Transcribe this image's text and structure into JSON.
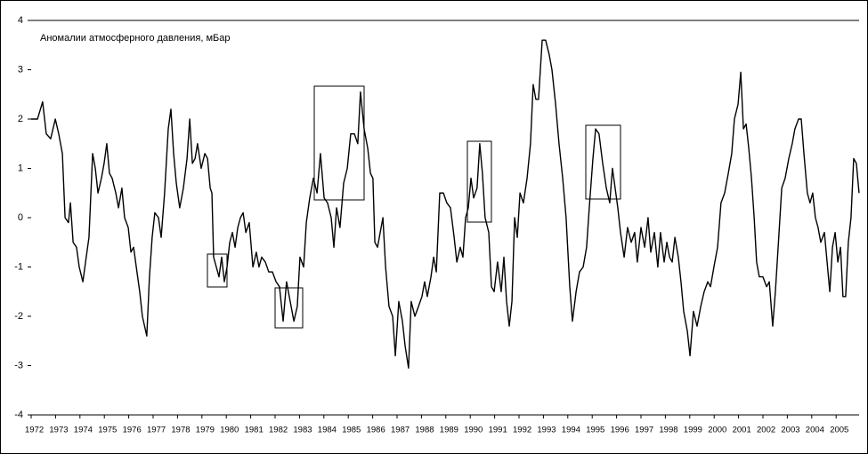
{
  "chart_data": {
    "type": "line",
    "title": "Аномалии атмосферного давления, мБар",
    "color": "#000000",
    "xlim": [
      1972,
      2006
    ],
    "xticks": [
      1972,
      1973,
      1974,
      1975,
      1976,
      1977,
      1978,
      1979,
      1980,
      1981,
      1982,
      1983,
      1984,
      1985,
      1986,
      1987,
      1988,
      1989,
      1990,
      1991,
      1992,
      1993,
      1994,
      1995,
      1996,
      1997,
      1998,
      1999,
      2000,
      2001,
      2002,
      2003,
      2004,
      2005
    ],
    "ylim": [
      -4,
      4
    ],
    "yticks": [
      -4,
      -3,
      -2,
      -1,
      0,
      1,
      2,
      3,
      4
    ],
    "x": [
      1972.0,
      1972.26,
      1972.47,
      1972.62,
      1972.8,
      1972.99,
      1973.13,
      1973.28,
      1973.39,
      1973.53,
      1973.61,
      1973.72,
      1973.86,
      1973.97,
      1974.12,
      1974.23,
      1974.37,
      1974.52,
      1974.63,
      1974.74,
      1974.88,
      1974.99,
      1975.1,
      1975.21,
      1975.32,
      1975.47,
      1975.58,
      1975.72,
      1975.83,
      1975.98,
      1976.09,
      1976.2,
      1976.31,
      1976.45,
      1976.56,
      1976.74,
      1976.85,
      1976.96,
      1977.07,
      1977.22,
      1977.33,
      1977.47,
      1977.62,
      1977.73,
      1977.84,
      1977.95,
      1978.09,
      1978.24,
      1978.39,
      1978.5,
      1978.61,
      1978.72,
      1978.82,
      1978.97,
      1979.12,
      1979.23,
      1979.34,
      1979.41,
      1979.48,
      1979.59,
      1979.7,
      1979.81,
      1979.92,
      1980.03,
      1980.14,
      1980.25,
      1980.36,
      1980.47,
      1980.58,
      1980.69,
      1980.8,
      1980.94,
      1981.09,
      1981.23,
      1981.34,
      1981.45,
      1981.6,
      1981.74,
      1981.89,
      1982.04,
      1982.18,
      1982.33,
      1982.47,
      1982.62,
      1982.77,
      1982.91,
      1983.02,
      1983.17,
      1983.28,
      1983.42,
      1983.57,
      1983.72,
      1983.86,
      1984.01,
      1984.15,
      1984.3,
      1984.41,
      1984.52,
      1984.66,
      1984.81,
      1984.96,
      1985.1,
      1985.25,
      1985.39,
      1985.5,
      1985.65,
      1985.8,
      1985.91,
      1986.01,
      1986.09,
      1986.2,
      1986.31,
      1986.42,
      1986.53,
      1986.67,
      1986.82,
      1986.93,
      1987.07,
      1987.22,
      1987.33,
      1987.47,
      1987.58,
      1987.73,
      1987.88,
      1988.02,
      1988.13,
      1988.24,
      1988.39,
      1988.5,
      1988.61,
      1988.75,
      1988.9,
      1989.04,
      1989.19,
      1989.34,
      1989.45,
      1989.59,
      1989.7,
      1989.81,
      1989.92,
      1990.03,
      1990.14,
      1990.28,
      1990.39,
      1990.5,
      1990.61,
      1990.76,
      1990.87,
      1990.98,
      1991.12,
      1991.27,
      1991.38,
      1991.49,
      1991.6,
      1991.71,
      1991.82,
      1991.93,
      1992.04,
      1992.18,
      1992.33,
      1992.47,
      1992.58,
      1992.69,
      1992.8,
      1992.95,
      1993.09,
      1993.24,
      1993.35,
      1993.5,
      1993.64,
      1993.79,
      1993.93,
      1994.08,
      1994.19,
      1994.34,
      1994.48,
      1994.63,
      1994.77,
      1994.88,
      1995.03,
      1995.14,
      1995.28,
      1995.43,
      1995.58,
      1995.72,
      1995.83,
      1995.94,
      1996.05,
      1996.16,
      1996.31,
      1996.45,
      1996.6,
      1996.74,
      1996.85,
      1997.0,
      1997.15,
      1997.29,
      1997.4,
      1997.55,
      1997.69,
      1997.8,
      1997.95,
      1998.06,
      1998.17,
      1998.28,
      1998.39,
      1998.53,
      1998.64,
      1998.75,
      1998.9,
      1999.01,
      1999.15,
      1999.3,
      1999.45,
      1999.59,
      1999.74,
      1999.85,
      1999.99,
      2000.14,
      2000.28,
      2000.43,
      2000.58,
      2000.72,
      2000.83,
      2000.98,
      2001.09,
      2001.2,
      2001.31,
      2001.42,
      2001.53,
      2001.64,
      2001.74,
      2001.85,
      2002.0,
      2002.15,
      2002.26,
      2002.4,
      2002.51,
      2002.66,
      2002.77,
      2002.91,
      2003.06,
      2003.2,
      2003.31,
      2003.46,
      2003.57,
      2003.68,
      2003.82,
      2003.93,
      2004.04,
      2004.15,
      2004.26,
      2004.37,
      2004.52,
      2004.63,
      2004.74,
      2004.85,
      2004.96,
      2005.07,
      2005.18,
      2005.28,
      2005.39,
      2005.5,
      2005.61,
      2005.72,
      2005.83,
      2005.94
    ],
    "values": [
      2.0,
      2.0,
      2.35,
      1.7,
      1.6,
      2.0,
      1.7,
      1.3,
      0.0,
      -0.1,
      0.3,
      -0.5,
      -0.6,
      -1.0,
      -1.3,
      -0.9,
      -0.4,
      1.3,
      1.0,
      0.5,
      0.8,
      1.1,
      1.5,
      0.9,
      0.8,
      0.5,
      0.2,
      0.6,
      0.0,
      -0.2,
      -0.7,
      -0.6,
      -1.0,
      -1.5,
      -2.0,
      -2.4,
      -1.2,
      -0.4,
      0.1,
      0.0,
      -0.4,
      0.5,
      1.8,
      2.2,
      1.3,
      0.7,
      0.2,
      0.6,
      1.2,
      2.0,
      1.1,
      1.2,
      1.5,
      1.0,
      1.3,
      1.2,
      0.6,
      0.5,
      -0.8,
      -1.0,
      -1.2,
      -0.8,
      -1.3,
      -1.0,
      -0.5,
      -0.3,
      -0.6,
      -0.2,
      0.0,
      0.1,
      -0.3,
      -0.1,
      -1.0,
      -0.7,
      -1.0,
      -0.8,
      -0.9,
      -1.1,
      -1.1,
      -1.3,
      -1.4,
      -2.1,
      -1.3,
      -1.7,
      -2.1,
      -1.8,
      -0.8,
      -1.0,
      -0.1,
      0.4,
      0.8,
      0.5,
      1.3,
      0.4,
      0.3,
      0.0,
      -0.6,
      0.2,
      -0.2,
      0.7,
      1.0,
      1.7,
      1.7,
      1.5,
      2.55,
      1.8,
      1.4,
      0.9,
      0.8,
      -0.5,
      -0.6,
      -0.3,
      0.0,
      -1.0,
      -1.8,
      -2.0,
      -2.8,
      -1.7,
      -2.1,
      -2.6,
      -3.05,
      -1.7,
      -2.0,
      -1.8,
      -1.6,
      -1.3,
      -1.6,
      -1.2,
      -0.8,
      -1.1,
      0.5,
      0.5,
      0.3,
      0.2,
      -0.4,
      -0.9,
      -0.6,
      -0.8,
      0.0,
      0.2,
      0.8,
      0.4,
      0.6,
      1.5,
      0.9,
      0.0,
      -0.3,
      -1.4,
      -1.5,
      -0.9,
      -1.5,
      -0.8,
      -1.7,
      -2.2,
      -1.7,
      0.0,
      -0.4,
      0.5,
      0.3,
      0.8,
      1.5,
      2.7,
      2.4,
      2.4,
      3.6,
      3.6,
      3.3,
      3.0,
      2.3,
      1.5,
      0.8,
      0.0,
      -1.4,
      -2.1,
      -1.5,
      -1.1,
      -1.0,
      -0.6,
      0.2,
      1.2,
      1.8,
      1.7,
      1.1,
      0.6,
      0.3,
      1.0,
      0.6,
      0.2,
      -0.3,
      -0.8,
      -0.2,
      -0.5,
      -0.3,
      -0.9,
      -0.2,
      -0.6,
      0.0,
      -0.7,
      -0.3,
      -1.0,
      -0.3,
      -0.9,
      -0.5,
      -0.8,
      -0.9,
      -0.4,
      -0.8,
      -1.3,
      -1.9,
      -2.3,
      -2.8,
      -1.9,
      -2.2,
      -1.8,
      -1.5,
      -1.3,
      -1.4,
      -1.0,
      -0.6,
      0.3,
      0.5,
      0.9,
      1.3,
      2.0,
      2.3,
      2.95,
      1.8,
      1.9,
      1.4,
      0.8,
      0.0,
      -0.9,
      -1.2,
      -1.2,
      -1.4,
      -1.3,
      -2.2,
      -1.5,
      -0.3,
      0.6,
      0.8,
      1.2,
      1.5,
      1.8,
      2.0,
      2.0,
      1.3,
      0.5,
      0.3,
      0.5,
      0.0,
      -0.2,
      -0.5,
      -0.3,
      -0.9,
      -1.5,
      -0.6,
      -0.3,
      -0.9,
      -0.6,
      -1.6,
      -1.6,
      -0.5,
      0.0,
      1.2,
      1.1,
      0.5
    ]
  }
}
